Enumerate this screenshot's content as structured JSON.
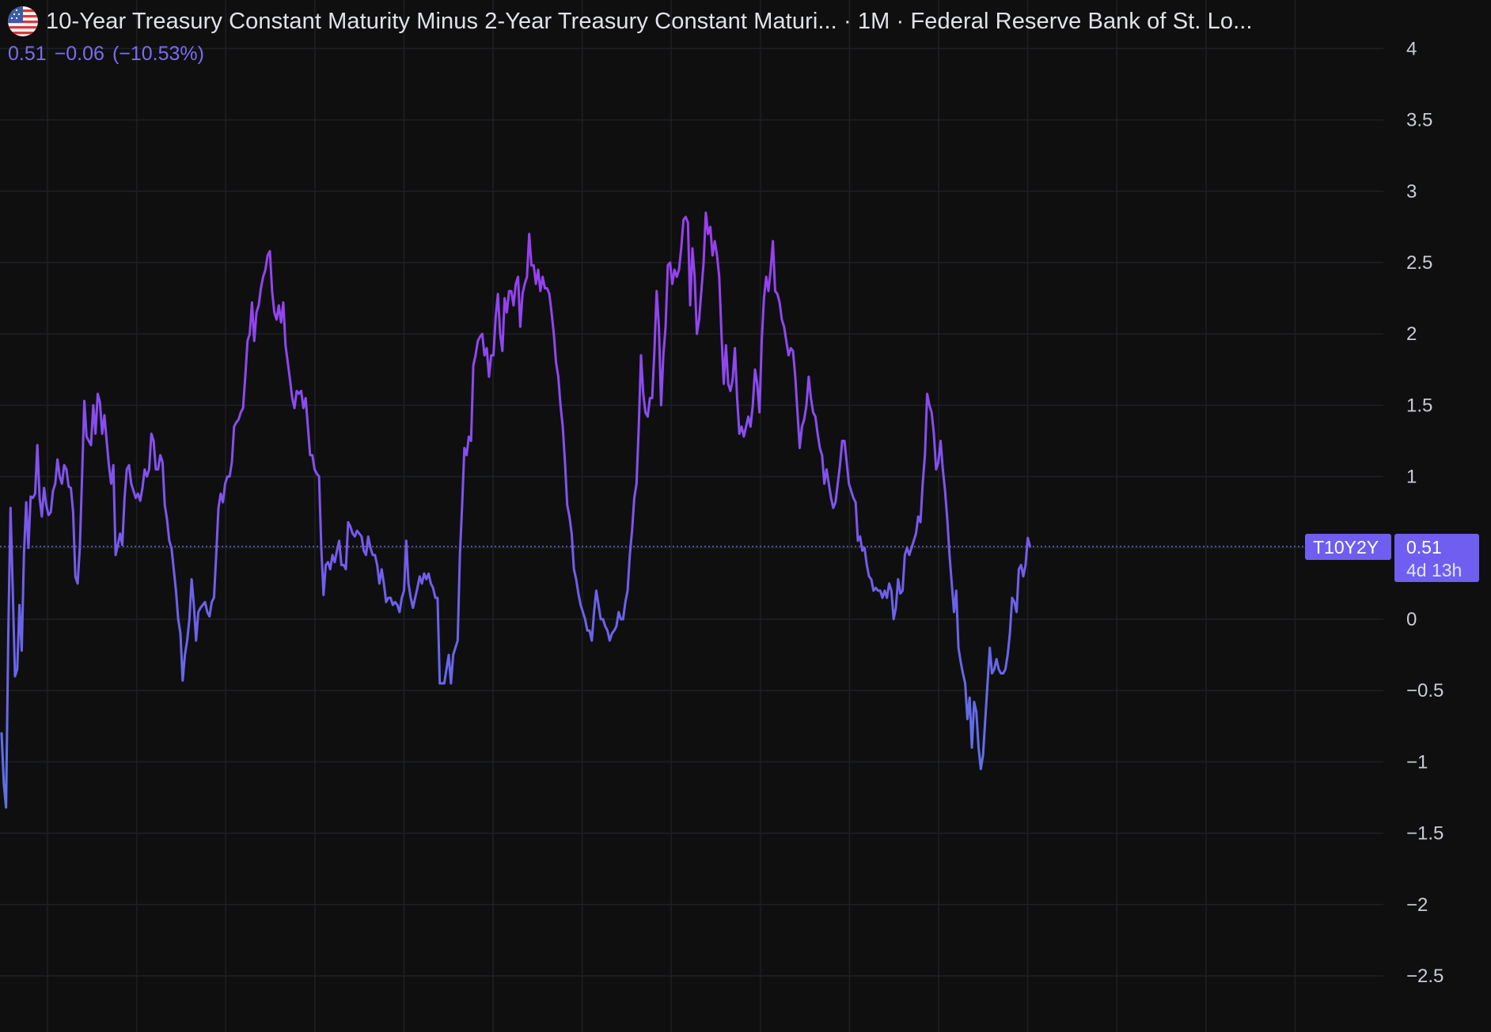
{
  "header": {
    "title": "10-Year Treasury Constant Maturity Minus 2-Year Treasury Constant Maturi... · 1M · Federal Reserve Bank of St. Lo...",
    "flag_icon": "us-flag-icon",
    "last_value": "0.51",
    "change": "−0.06",
    "change_pct": "(−10.53%)"
  },
  "price_tag": {
    "symbol": "T10Y2Y",
    "value": "0.51",
    "countdown": "4d 13h"
  },
  "colors": {
    "background": "#0f0f10",
    "grid": "#1f2024",
    "line_low": "#5b74e8",
    "line_high": "#9b3df0",
    "tag_fill": "#6f5ef0",
    "text": "#c9ccd4"
  },
  "chart_data": {
    "type": "line",
    "title": "10-Year Treasury Constant Maturity Minus 2-Year Treasury Constant Maturity",
    "interval": "1M",
    "ylim": [
      -2.75,
      4.15
    ],
    "y_ticks": [
      "4",
      "3.5",
      "3",
      "2.5",
      "2",
      "1.5",
      "1",
      "0.5",
      "0",
      "−0.5",
      "−1",
      "−1.5",
      "−2",
      "−2.5"
    ],
    "y_tick_values": [
      4,
      3.5,
      3,
      2.5,
      2,
      1.5,
      1,
      0.5,
      0,
      -0.5,
      -1,
      -1.5,
      -2,
      -2.5
    ],
    "grid": true,
    "current_value": 0.51,
    "series": [
      {
        "values": [
          -0.8,
          -1.15,
          -1.32,
          -0.1,
          0.78,
          0.2,
          -0.4,
          -0.35,
          0.1,
          -0.22,
          0.45,
          0.82,
          0.5,
          0.86,
          0.85,
          0.88,
          1.22,
          0.85,
          0.72,
          0.92,
          0.8,
          0.73,
          0.75,
          0.9,
          0.95,
          1.12,
          1.0,
          0.95,
          1.08,
          1.05,
          0.93,
          0.92,
          0.75,
          0.3,
          0.25,
          0.5,
          1.0,
          1.53,
          1.28,
          1.25,
          1.22,
          1.5,
          1.3,
          1.58,
          1.52,
          1.3,
          1.43,
          1.25,
          1.08,
          0.95,
          1.08,
          0.45,
          0.52,
          0.6,
          0.52,
          0.85,
          1.05,
          1.08,
          0.95,
          0.9,
          0.85,
          0.88,
          0.83,
          0.92,
          1.05,
          1.0,
          1.05,
          1.3,
          1.25,
          1.05,
          1.05,
          1.15,
          1.1,
          0.8,
          0.7,
          0.55,
          0.5,
          0.35,
          0.2,
          0.0,
          -0.1,
          -0.43,
          -0.25,
          -0.15,
          0.0,
          0.28,
          0.1,
          -0.15,
          0.05,
          0.08,
          0.1,
          0.12,
          0.05,
          0.02,
          0.12,
          0.15,
          0.45,
          0.78,
          0.88,
          0.82,
          0.95,
          1.0,
          1.0,
          1.1,
          1.35,
          1.38,
          1.4,
          1.45,
          1.48,
          1.7,
          1.95,
          2.0,
          2.22,
          1.95,
          2.15,
          2.2,
          2.32,
          2.4,
          2.45,
          2.55,
          2.58,
          2.3,
          2.15,
          2.1,
          2.2,
          2.08,
          2.22,
          1.92,
          1.8,
          1.68,
          1.55,
          1.48,
          1.6,
          1.58,
          1.6,
          1.48,
          1.55,
          1.35,
          1.15,
          1.15,
          1.05,
          1.02,
          1.0,
          0.5,
          0.17,
          0.38,
          0.4,
          0.35,
          0.45,
          0.4,
          0.48,
          0.55,
          0.38,
          0.38,
          0.35,
          0.68,
          0.65,
          0.6,
          0.58,
          0.62,
          0.6,
          0.58,
          0.48,
          0.45,
          0.58,
          0.5,
          0.45,
          0.45,
          0.38,
          0.25,
          0.35,
          0.25,
          0.12,
          0.15,
          0.15,
          0.1,
          0.12,
          0.1,
          0.05,
          0.15,
          0.2,
          0.55,
          0.25,
          0.15,
          0.08,
          0.15,
          0.22,
          0.3,
          0.25,
          0.32,
          0.28,
          0.32,
          0.25,
          0.22,
          0.15,
          0.15,
          -0.45,
          -0.45,
          -0.45,
          -0.35,
          -0.25,
          -0.45,
          -0.25,
          -0.2,
          -0.15,
          0.45,
          0.8,
          1.2,
          1.15,
          1.28,
          1.25,
          1.78,
          1.85,
          1.95,
          1.98,
          2.0,
          1.85,
          1.9,
          1.7,
          1.85,
          1.85,
          2.12,
          2.28,
          2.0,
          1.88,
          2.25,
          2.15,
          2.3,
          2.3,
          2.2,
          2.35,
          2.4,
          2.05,
          2.28,
          2.35,
          2.4,
          2.7,
          2.48,
          2.48,
          2.35,
          2.45,
          2.3,
          2.4,
          2.32,
          2.32,
          2.28,
          2.15,
          2.0,
          1.8,
          1.7,
          1.5,
          1.35,
          1.1,
          0.8,
          0.72,
          0.6,
          0.35,
          0.28,
          0.18,
          0.1,
          0.05,
          0.0,
          -0.08,
          -0.08,
          -0.15,
          0.05,
          0.2,
          0.1,
          0.0,
          0.0,
          -0.05,
          -0.08,
          -0.15,
          -0.1,
          -0.08,
          -0.05,
          0.05,
          0.0,
          0.0,
          0.12,
          0.2,
          0.45,
          0.62,
          0.85,
          0.95,
          1.35,
          1.85,
          1.58,
          1.45,
          1.42,
          1.55,
          1.55,
          1.88,
          2.3,
          2.05,
          1.5,
          1.85,
          2.05,
          2.48,
          2.5,
          2.35,
          2.45,
          2.4,
          2.45,
          2.6,
          2.8,
          2.82,
          2.78,
          2.2,
          2.6,
          2.4,
          2.0,
          2.1,
          2.3,
          2.5,
          2.85,
          2.7,
          2.75,
          2.55,
          2.65,
          2.55,
          2.4,
          2.0,
          1.65,
          1.92,
          1.65,
          1.6,
          1.68,
          1.9,
          1.55,
          1.3,
          1.35,
          1.28,
          1.35,
          1.42,
          1.35,
          1.5,
          1.75,
          1.65,
          1.45,
          1.95,
          2.25,
          2.4,
          2.3,
          2.45,
          2.65,
          2.3,
          2.28,
          2.22,
          2.1,
          2.05,
          1.95,
          1.85,
          1.9,
          1.88,
          1.7,
          1.45,
          1.2,
          1.35,
          1.4,
          1.5,
          1.7,
          1.55,
          1.45,
          1.42,
          1.3,
          1.2,
          1.15,
          0.95,
          1.05,
          0.95,
          0.85,
          0.78,
          0.82,
          0.95,
          1.08,
          1.25,
          1.25,
          1.1,
          0.95,
          0.9,
          0.85,
          0.82,
          0.55,
          0.58,
          0.48,
          0.5,
          0.38,
          0.3,
          0.28,
          0.2,
          0.22,
          0.2,
          0.2,
          0.15,
          0.2,
          0.15,
          0.25,
          0.2,
          0.0,
          0.08,
          0.28,
          0.18,
          0.2,
          0.45,
          0.5,
          0.45,
          0.5,
          0.55,
          0.6,
          0.72,
          0.68,
          0.95,
          1.15,
          1.58,
          1.5,
          1.45,
          1.3,
          1.05,
          1.1,
          1.25,
          1.05,
          0.9,
          0.7,
          0.45,
          0.25,
          0.05,
          0.2,
          -0.2,
          -0.3,
          -0.38,
          -0.45,
          -0.7,
          -0.55,
          -0.9,
          -0.58,
          -0.65,
          -0.9,
          -1.05,
          -0.95,
          -0.7,
          -0.45,
          -0.2,
          -0.38,
          -0.35,
          -0.28,
          -0.35,
          -0.38,
          -0.38,
          -0.35,
          -0.25,
          -0.1,
          0.15,
          0.12,
          0.05,
          0.35,
          0.38,
          0.3,
          0.38,
          0.57,
          0.51
        ]
      }
    ]
  }
}
